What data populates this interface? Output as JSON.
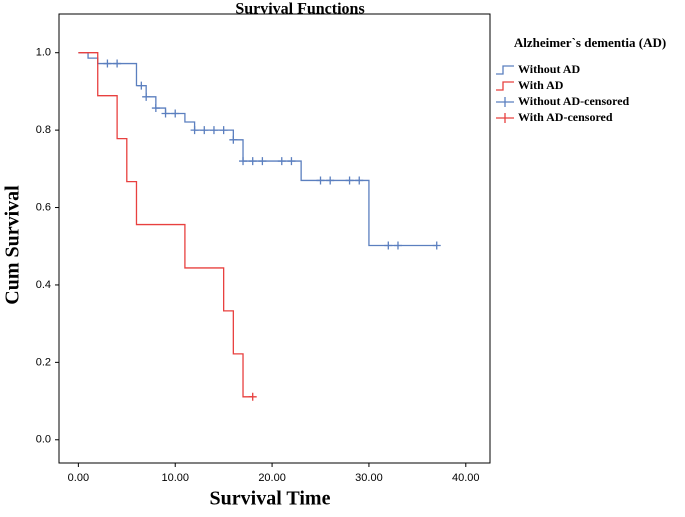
{
  "chart_data": {
    "type": "step",
    "title": "Survival Functions",
    "xlabel": "Survival Time",
    "ylabel": "Cum Survival",
    "legend_title": "Alzheimer`s dementia (AD)",
    "legend": "right",
    "xlim": [
      -2,
      42.5
    ],
    "ylim": [
      -0.06,
      1.1
    ],
    "xticks": [
      {
        "value": 0,
        "label": "0.00"
      },
      {
        "value": 10,
        "label": "10.00"
      },
      {
        "value": 20,
        "label": "20.00"
      },
      {
        "value": 30,
        "label": "30.00"
      },
      {
        "value": 40,
        "label": "40.00"
      }
    ],
    "yticks": [
      {
        "value": 0,
        "label": "0.0"
      },
      {
        "value": 0.2,
        "label": "0.2"
      },
      {
        "value": 0.4,
        "label": "0.4"
      },
      {
        "value": 0.6,
        "label": "0.6"
      },
      {
        "value": 0.8,
        "label": "0.8"
      },
      {
        "value": 1,
        "label": "1.0"
      }
    ],
    "series": [
      {
        "name": "Without AD",
        "color": "#5b7fbf",
        "style": "step",
        "x": [
          0,
          1,
          2,
          6,
          7,
          8,
          9,
          11,
          12,
          16,
          17,
          23,
          30,
          37
        ],
        "values": [
          1.0,
          0.986,
          0.972,
          0.915,
          0.886,
          0.857,
          0.843,
          0.821,
          0.8,
          0.775,
          0.72,
          0.67,
          0.502,
          0.502
        ]
      },
      {
        "name": "With AD",
        "color": "#e8403f",
        "style": "step",
        "x": [
          0,
          2,
          4,
          5,
          6,
          11,
          15,
          16,
          17,
          18
        ],
        "values": [
          1.0,
          0.889,
          0.778,
          0.667,
          0.556,
          0.444,
          0.333,
          0.222,
          0.111,
          0.111
        ]
      },
      {
        "name": "Without AD-censored",
        "color": "#5b7fbf",
        "style": "censored",
        "x": [
          3,
          4,
          6.5,
          7,
          8,
          9,
          10,
          12,
          13,
          14,
          15,
          16,
          17,
          18,
          19,
          21,
          22,
          25,
          26,
          28,
          29,
          32,
          33,
          37
        ],
        "values": [
          0.972,
          0.972,
          0.915,
          0.886,
          0.857,
          0.843,
          0.843,
          0.8,
          0.8,
          0.8,
          0.8,
          0.775,
          0.72,
          0.72,
          0.72,
          0.72,
          0.72,
          0.67,
          0.67,
          0.67,
          0.67,
          0.502,
          0.502,
          0.502
        ]
      },
      {
        "name": "With AD-censored",
        "color": "#e8403f",
        "style": "censored",
        "x": [
          18
        ],
        "values": [
          0.111
        ]
      }
    ]
  }
}
